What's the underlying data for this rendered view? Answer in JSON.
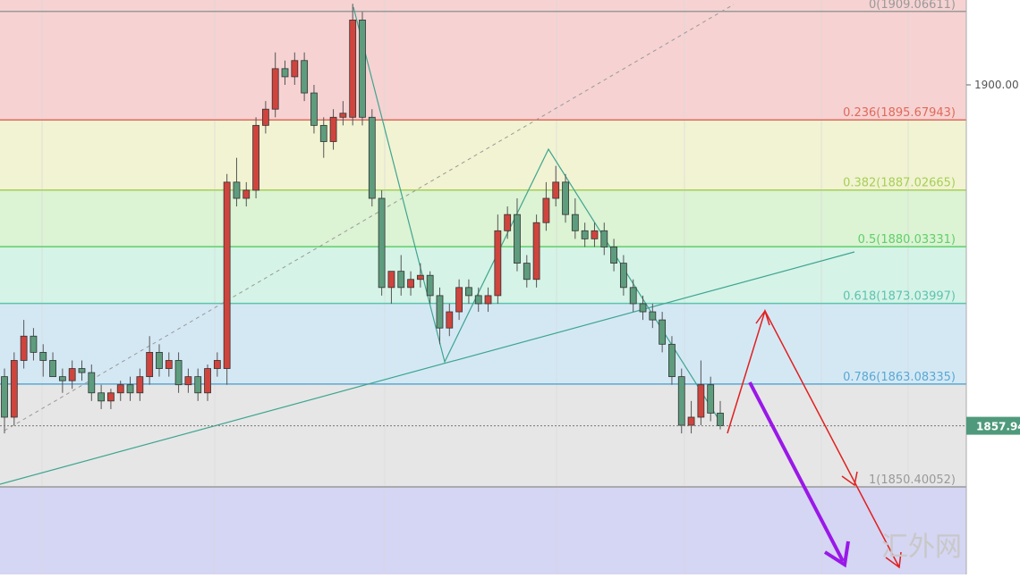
{
  "chart_data": {
    "type": "candlestick",
    "ylim": [
      1839.6,
      1910.47
    ],
    "yticks": [
      {
        "value": 1900,
        "label": "1900.00"
      }
    ],
    "up_color": "#d0443e",
    "down_color": "#5e9c7e",
    "open": [
      1864,
      1859,
      1866,
      1869,
      1867,
      1866,
      1864,
      1863.5,
      1865,
      1864.5,
      1862,
      1861,
      1862,
      1863,
      1862,
      1864,
      1867,
      1865,
      1866,
      1863,
      1864,
      1862,
      1865,
      1865,
      1888,
      1886,
      1887,
      1895,
      1897,
      1902,
      1901,
      1903,
      1899,
      1895,
      1893,
      1896,
      1896,
      1908,
      1896,
      1886,
      1875,
      1877,
      1875,
      1876,
      1876.5,
      1874,
      1870,
      1872,
      1875,
      1874,
      1873,
      1874,
      1882,
      1884,
      1878,
      1876,
      1883,
      1886,
      1888,
      1884,
      1882,
      1881,
      1882,
      1880,
      1878,
      1875,
      1873,
      1872,
      1871,
      1868,
      1864,
      1858,
      1859,
      1863,
      1859.5
    ],
    "high": [
      1865,
      1867,
      1871,
      1870,
      1868,
      1867,
      1865,
      1866,
      1866,
      1865.5,
      1863,
      1862.5,
      1863.5,
      1864,
      1865,
      1869,
      1868,
      1867,
      1867,
      1865,
      1865,
      1865.5,
      1867,
      1889,
      1891,
      1888,
      1896,
      1898,
      1904,
      1903,
      1904,
      1904,
      1900,
      1896,
      1897,
      1898,
      1910,
      1909,
      1897,
      1887,
      1877,
      1879,
      1877,
      1878,
      1877,
      1875,
      1873,
      1876,
      1876,
      1875,
      1875,
      1884,
      1885,
      1886,
      1879,
      1884,
      1888,
      1890,
      1889,
      1886,
      1883,
      1883,
      1883,
      1881,
      1879,
      1876,
      1874,
      1873,
      1872,
      1869,
      1865,
      1861,
      1866,
      1864,
      1861
    ],
    "low": [
      1857,
      1858,
      1865,
      1866,
      1864,
      1864,
      1862,
      1862.5,
      1863.5,
      1861,
      1860,
      1860,
      1861,
      1861,
      1861,
      1863,
      1864,
      1864,
      1862,
      1862,
      1861,
      1861,
      1864,
      1863,
      1885,
      1885,
      1886,
      1894,
      1896,
      1900,
      1900,
      1898,
      1894,
      1891,
      1892,
      1895,
      1895,
      1895,
      1885,
      1874,
      1873,
      1874,
      1874,
      1875,
      1873,
      1868,
      1869,
      1871,
      1873,
      1872,
      1872,
      1873,
      1881,
      1877,
      1875,
      1875,
      1882,
      1885,
      1883,
      1881,
      1880,
      1880,
      1879,
      1877,
      1874,
      1872,
      1871,
      1870,
      1867,
      1863,
      1857,
      1857,
      1858,
      1858.5,
      1857.5
    ],
    "close": [
      1859,
      1866,
      1869,
      1867,
      1866,
      1864,
      1863.5,
      1865,
      1864.5,
      1862,
      1861,
      1862,
      1863,
      1862,
      1864,
      1867,
      1865,
      1866,
      1863,
      1864,
      1862,
      1865,
      1866,
      1888,
      1886,
      1887,
      1895,
      1897,
      1902,
      1901,
      1903,
      1899,
      1895,
      1893,
      1896,
      1896.5,
      1908,
      1896,
      1886,
      1875,
      1877,
      1875,
      1876,
      1876.5,
      1874,
      1870,
      1872,
      1875,
      1874,
      1873,
      1874,
      1882,
      1884,
      1878,
      1876,
      1883,
      1886,
      1888,
      1884,
      1882,
      1881,
      1882,
      1880,
      1878,
      1875,
      1873,
      1872,
      1871,
      1868,
      1864,
      1858,
      1859,
      1863,
      1859.5,
      1857.94
    ],
    "last_price": 1857.94,
    "fib_levels": [
      {
        "value": 1909.06611,
        "label": "0(1909.06611)",
        "color": "#999999",
        "fill": "#f6d2d2"
      },
      {
        "value": 1895.67943,
        "label": "0.236(1895.67943)",
        "color": "#e06a5a",
        "fill": "#f1f3d3"
      },
      {
        "value": 1887.02665,
        "label": "0.382(1887.02665)",
        "color": "#a6cf55",
        "fill": "#dcf3d4"
      },
      {
        "value": 1880.03331,
        "label": "0.5(1880.03331)",
        "color": "#5fcf6a",
        "fill": "#d5f3e7"
      },
      {
        "value": 1873.03997,
        "label": "0.618(1873.03997)",
        "color": "#5dc3ae",
        "fill": "#d4e8f4"
      },
      {
        "value": 1863.08335,
        "label": "0.786(1863.08335)",
        "color": "#5aa8d4",
        "fill": "#e6e6e6"
      },
      {
        "value": 1850.40052,
        "label": "1(1850.40052)",
        "color": "#999999",
        "fill": "#d5d5f4"
      }
    ],
    "watermark": "汇外网"
  }
}
